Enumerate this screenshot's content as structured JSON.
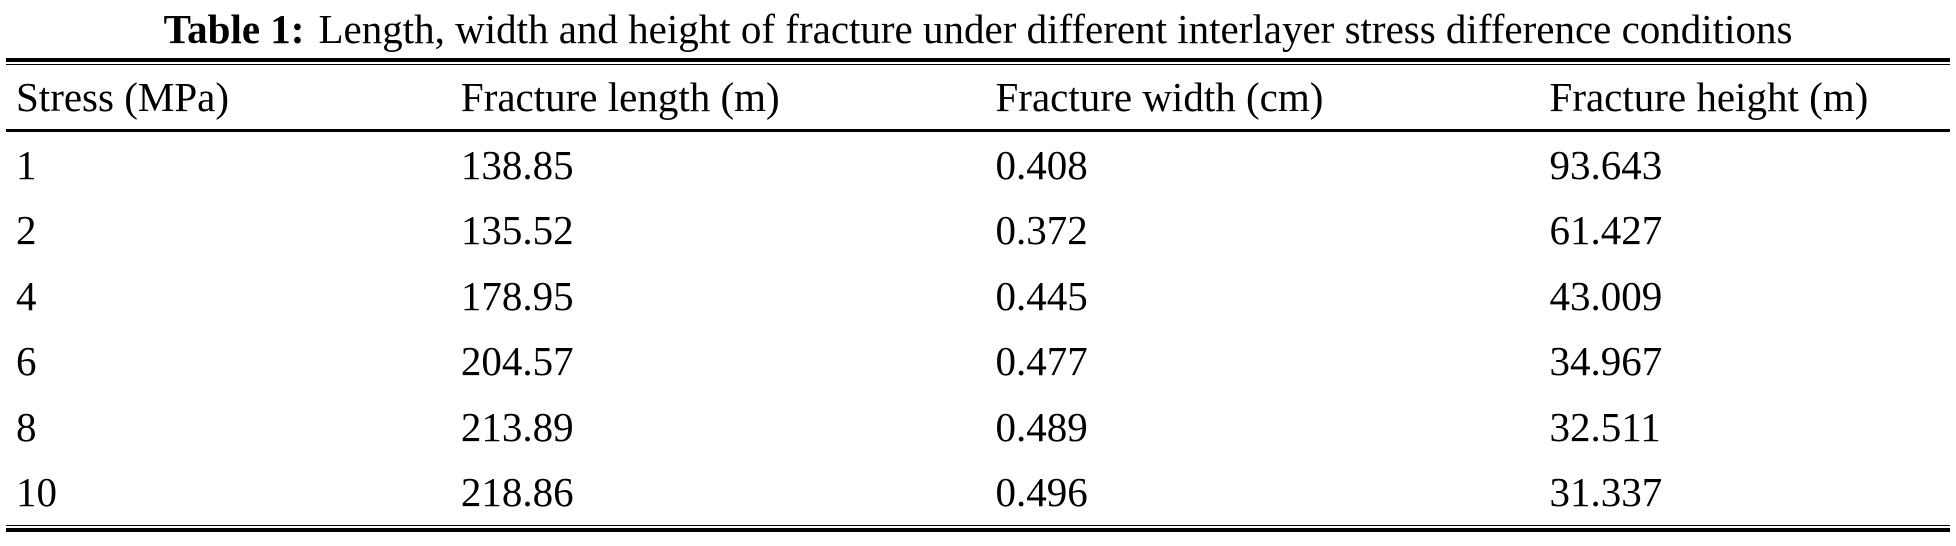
{
  "caption": {
    "label": "Table 1:",
    "text": "Length, width and height of fracture under different interlayer stress difference conditions"
  },
  "table": {
    "columns": [
      "Stress (MPa)",
      "Fracture length (m)",
      "Fracture width (cm)",
      "Fracture height (m)"
    ],
    "rows": [
      [
        "1",
        "138.85",
        "0.408",
        "93.643"
      ],
      [
        "2",
        "135.52",
        "0.372",
        "61.427"
      ],
      [
        "4",
        "178.95",
        "0.445",
        "43.009"
      ],
      [
        "6",
        "204.57",
        "0.477",
        "34.967"
      ],
      [
        "8",
        "213.89",
        "0.489",
        "32.511"
      ],
      [
        "10",
        "218.86",
        "0.496",
        "31.337"
      ]
    ]
  },
  "colors": {
    "text": "#000000",
    "background": "#ffffff",
    "rule": "#000000"
  },
  "chart_data": {
    "type": "table",
    "title": "Table 1: Length, width and height of fracture under different interlayer stress difference conditions",
    "columns": [
      "Stress (MPa)",
      "Fracture length (m)",
      "Fracture width (cm)",
      "Fracture height (m)"
    ],
    "rows": [
      [
        1,
        138.85,
        0.408,
        93.643
      ],
      [
        2,
        135.52,
        0.372,
        61.427
      ],
      [
        4,
        178.95,
        0.445,
        43.009
      ],
      [
        6,
        204.57,
        0.477,
        34.967
      ],
      [
        8,
        213.89,
        0.489,
        32.511
      ],
      [
        10,
        218.86,
        0.496,
        31.337
      ]
    ]
  }
}
